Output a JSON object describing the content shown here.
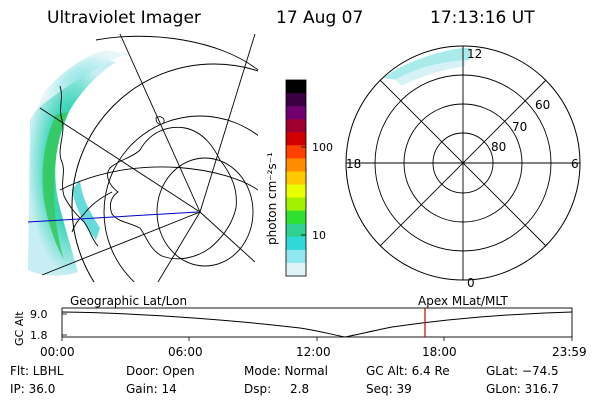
{
  "header": {
    "instrument": "Ultraviolet Imager",
    "date": "17 Aug 07",
    "time": "17:13:16 UT"
  },
  "colorbar": {
    "unit_label": "photon cm⁻²s⁻¹",
    "ticks": [
      "100",
      "10"
    ],
    "colors": [
      "#000000",
      "#3a0040",
      "#70006e",
      "#a00030",
      "#d00000",
      "#ff4000",
      "#ff8c00",
      "#ffc800",
      "#e8ff00",
      "#a0f000",
      "#30e030",
      "#30d090",
      "#30d8d8",
      "#90e8f0",
      "#e0f4f8"
    ]
  },
  "polar_plot": {
    "mlt_labels": [
      "12",
      "18",
      "6",
      "0"
    ],
    "lat_labels": [
      "60",
      "70",
      "80"
    ]
  },
  "timeline": {
    "left_label": "Geographic Lat/Lon",
    "right_label": "Apex MLat/MLT",
    "axis_label": "GC Alt",
    "y_ticks": [
      "9.0",
      "1.8"
    ],
    "x_ticks": [
      "00:00",
      "06:00",
      "12:00",
      "18:00",
      "23:59"
    ],
    "marker_time": "17:13",
    "marker_color": "#cc0000"
  },
  "status": {
    "filter": "Flt: LBHL",
    "door": "Door: Open",
    "mode": "Mode: Normal",
    "gc_alt": "GC Alt: 6.4 Re",
    "glat": "GLat: −74.5",
    "ip": "IP: 36.0",
    "gain": "Gain: 14",
    "dsp_label": "Dsp:",
    "dsp_value": "2.8",
    "seq": "Seq: 39",
    "glon": "GLon: 316.7"
  }
}
